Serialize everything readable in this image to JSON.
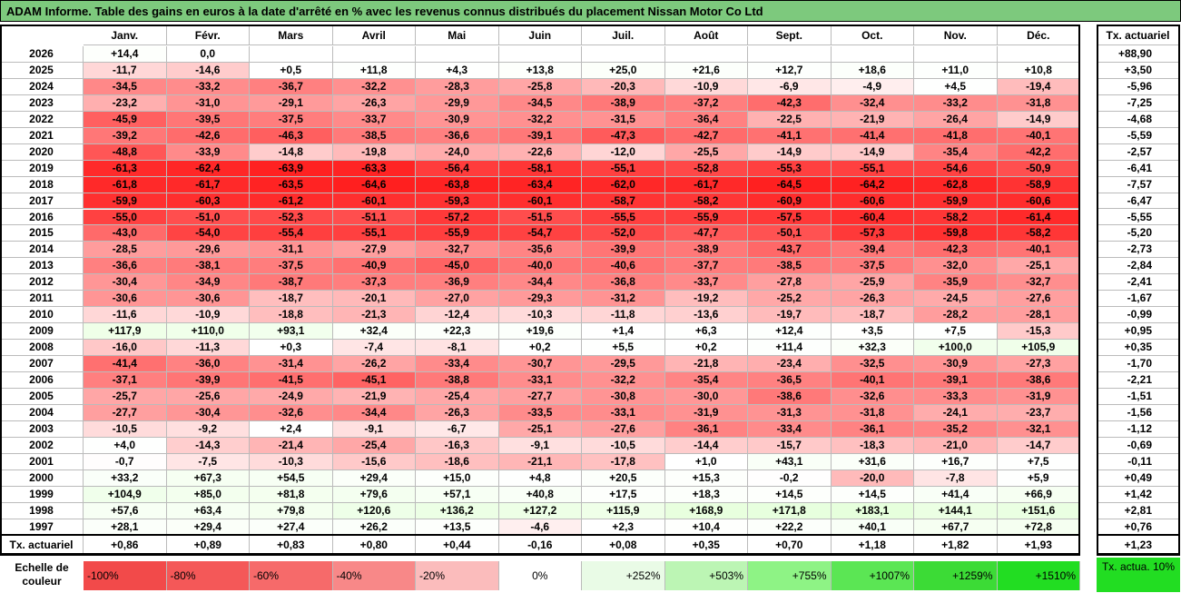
{
  "title": "ADAM Informe. Table des gains en euros à la date d'arrêté en % avec les revenus connus distribués du placement Nissan Motor Co Ltd",
  "chart_data": {
    "type": "table",
    "months": [
      "Janv.",
      "Févr.",
      "Mars",
      "Avril",
      "Mai",
      "Juin",
      "Juil.",
      "Août",
      "Sept.",
      "Oct.",
      "Nov.",
      "Déc."
    ],
    "tx_header": "Tx. actuariel",
    "rows": [
      {
        "year": "2026",
        "values": [
          14.4,
          0.0,
          null,
          null,
          null,
          null,
          null,
          null,
          null,
          null,
          null,
          null
        ],
        "tx": 88.9
      },
      {
        "year": "2025",
        "values": [
          -11.7,
          -14.6,
          0.5,
          11.8,
          4.3,
          13.8,
          25.0,
          21.6,
          12.7,
          18.6,
          11.0,
          10.8
        ],
        "tx": 3.5
      },
      {
        "year": "2024",
        "values": [
          -34.5,
          -33.2,
          -36.7,
          -32.2,
          -28.3,
          -25.8,
          -20.3,
          -10.9,
          -6.9,
          -4.9,
          4.5,
          -19.4
        ],
        "tx": -5.96
      },
      {
        "year": "2023",
        "values": [
          -23.2,
          -31.0,
          -29.1,
          -26.3,
          -29.9,
          -34.5,
          -38.9,
          -37.2,
          -42.3,
          -32.4,
          -33.2,
          -31.8
        ],
        "tx": -7.25
      },
      {
        "year": "2022",
        "values": [
          -45.9,
          -39.5,
          -37.5,
          -33.7,
          -30.9,
          -32.2,
          -31.5,
          -36.4,
          -22.5,
          -21.9,
          -26.4,
          -14.9
        ],
        "tx": -4.68
      },
      {
        "year": "2021",
        "values": [
          -39.2,
          -42.6,
          -46.3,
          -38.5,
          -36.6,
          -39.1,
          -47.3,
          -42.7,
          -41.1,
          -41.4,
          -41.8,
          -40.1
        ],
        "tx": -5.59
      },
      {
        "year": "2020",
        "values": [
          -48.8,
          -33.9,
          -14.8,
          -19.8,
          -24.0,
          -22.6,
          -12.0,
          -25.5,
          -14.9,
          -14.9,
          -35.4,
          -42.2
        ],
        "tx": -2.57
      },
      {
        "year": "2019",
        "values": [
          -61.3,
          -62.4,
          -63.9,
          -63.3,
          -56.4,
          -58.1,
          -55.1,
          -52.8,
          -55.3,
          -55.1,
          -54.6,
          -50.9
        ],
        "tx": -6.41
      },
      {
        "year": "2018",
        "values": [
          -61.8,
          -61.7,
          -63.5,
          -64.6,
          -63.8,
          -63.4,
          -62.0,
          -61.7,
          -64.5,
          -64.2,
          -62.8,
          -58.9
        ],
        "tx": -7.57
      },
      {
        "year": "2017",
        "values": [
          -59.9,
          -60.3,
          -61.2,
          -60.1,
          -59.3,
          -60.1,
          -58.7,
          -58.2,
          -60.9,
          -60.6,
          -59.9,
          -60.6
        ],
        "tx": -6.47
      },
      {
        "year": "2016",
        "values": [
          -55.0,
          -51.0,
          -52.3,
          -51.1,
          -57.2,
          -51.5,
          -55.5,
          -55.9,
          -57.5,
          -60.4,
          -58.2,
          -61.4
        ],
        "tx": -5.55
      },
      {
        "year": "2015",
        "values": [
          -43.0,
          -54.0,
          -55.4,
          -55.1,
          -55.9,
          -54.7,
          -52.0,
          -47.7,
          -50.1,
          -57.3,
          -59.8,
          -58.2
        ],
        "tx": -5.2
      },
      {
        "year": "2014",
        "values": [
          -28.5,
          -29.6,
          -31.1,
          -27.9,
          -32.7,
          -35.6,
          -39.9,
          -38.9,
          -43.7,
          -39.4,
          -42.3,
          -40.1
        ],
        "tx": -2.73
      },
      {
        "year": "2013",
        "values": [
          -36.6,
          -38.1,
          -37.5,
          -40.9,
          -45.0,
          -40.0,
          -40.6,
          -37.7,
          -38.5,
          -37.5,
          -32.0,
          -25.1
        ],
        "tx": -2.84
      },
      {
        "year": "2012",
        "values": [
          -30.4,
          -34.9,
          -38.7,
          -37.3,
          -36.9,
          -34.4,
          -36.8,
          -33.7,
          -27.8,
          -25.9,
          -35.9,
          -32.7
        ],
        "tx": -2.41
      },
      {
        "year": "2011",
        "values": [
          -30.6,
          -30.6,
          -18.7,
          -20.1,
          -27.0,
          -29.3,
          -31.2,
          -19.2,
          -25.2,
          -26.3,
          -24.5,
          -27.6
        ],
        "tx": -1.67
      },
      {
        "year": "2010",
        "values": [
          -11.6,
          -10.9,
          -18.8,
          -21.3,
          -12.4,
          -10.3,
          -11.8,
          -13.6,
          -19.7,
          -18.7,
          -28.2,
          -28.1
        ],
        "tx": -0.99
      },
      {
        "year": "2009",
        "values": [
          117.9,
          110.0,
          93.1,
          32.4,
          22.3,
          19.6,
          1.4,
          6.3,
          12.4,
          3.5,
          7.5,
          -15.3
        ],
        "tx": 0.95
      },
      {
        "year": "2008",
        "values": [
          -16.0,
          -11.3,
          0.3,
          -7.4,
          -8.1,
          0.2,
          5.5,
          0.2,
          11.4,
          32.3,
          100.0,
          105.9
        ],
        "tx": 0.35
      },
      {
        "year": "2007",
        "values": [
          -41.4,
          -36.0,
          -31.4,
          -26.2,
          -33.4,
          -30.7,
          -29.5,
          -21.8,
          -23.4,
          -32.5,
          -30.9,
          -27.3
        ],
        "tx": -1.7
      },
      {
        "year": "2006",
        "values": [
          -37.1,
          -39.9,
          -41.5,
          -45.1,
          -38.8,
          -33.1,
          -32.2,
          -35.4,
          -36.5,
          -40.1,
          -39.1,
          -38.6
        ],
        "tx": -2.21
      },
      {
        "year": "2005",
        "values": [
          -25.7,
          -25.6,
          -24.9,
          -21.9,
          -25.4,
          -27.7,
          -30.8,
          -30.0,
          -38.6,
          -32.6,
          -33.3,
          -31.9
        ],
        "tx": -1.51
      },
      {
        "year": "2004",
        "values": [
          -27.7,
          -30.4,
          -32.6,
          -34.4,
          -26.3,
          -33.5,
          -33.1,
          -31.9,
          -31.3,
          -31.8,
          -24.1,
          -23.7
        ],
        "tx": -1.56
      },
      {
        "year": "2003",
        "values": [
          -10.5,
          -9.2,
          2.4,
          -9.1,
          -6.7,
          -25.1,
          -27.6,
          -36.1,
          -33.4,
          -36.1,
          -35.2,
          -32.1
        ],
        "tx": -1.12
      },
      {
        "year": "2002",
        "values": [
          4.0,
          -14.3,
          -21.4,
          -25.4,
          -16.3,
          -9.1,
          -10.5,
          -14.4,
          -15.7,
          -18.3,
          -21.0,
          -14.7
        ],
        "tx": -0.69
      },
      {
        "year": "2001",
        "values": [
          -0.7,
          -7.5,
          -10.3,
          -15.6,
          -18.6,
          -21.1,
          -17.8,
          1.0,
          43.1,
          31.6,
          16.7,
          7.5
        ],
        "tx": -0.11
      },
      {
        "year": "2000",
        "values": [
          33.2,
          67.3,
          54.5,
          29.4,
          15.0,
          4.8,
          20.5,
          15.3,
          -0.2,
          -20.0,
          -7.8,
          5.9
        ],
        "tx": 0.49
      },
      {
        "year": "1999",
        "values": [
          104.9,
          85.0,
          81.8,
          79.6,
          57.1,
          40.8,
          17.5,
          18.3,
          14.5,
          14.5,
          41.4,
          66.9
        ],
        "tx": 1.42
      },
      {
        "year": "1998",
        "values": [
          57.6,
          63.4,
          79.8,
          120.6,
          136.2,
          127.2,
          115.9,
          168.9,
          171.8,
          183.1,
          144.1,
          151.6
        ],
        "tx": 2.81
      },
      {
        "year": "1997",
        "values": [
          28.1,
          29.4,
          27.4,
          26.2,
          13.5,
          -4.6,
          2.3,
          10.4,
          22.2,
          40.1,
          67.7,
          72.8
        ],
        "tx": 0.76
      }
    ],
    "footer": {
      "label": "Tx. actuariel",
      "values": [
        0.86,
        0.89,
        0.83,
        0.8,
        0.44,
        -0.16,
        0.08,
        0.35,
        0.7,
        1.18,
        1.82,
        1.93
      ],
      "tx": 1.23
    },
    "scale": {
      "label": "Echelle de couleur",
      "items": [
        "-100%",
        "-80%",
        "-60%",
        "-40%",
        "-20%",
        "0%",
        "+252%",
        "+503%",
        "+755%",
        "+1007%",
        "+1259%",
        "+1510%"
      ],
      "right_label": "Tx. actua. 10%"
    }
  },
  "colors": {
    "title_bg": "#7dc97d",
    "scale": [
      "#f24a4a",
      "#f45858",
      "#f66a6a",
      "#f88888",
      "#fbbcbc",
      "#ffffff",
      "#e9fbe6",
      "#bcf5b4",
      "#8ef385",
      "#5be654",
      "#3cdb36",
      "#22dd22"
    ],
    "right_box": "#22dd22"
  }
}
